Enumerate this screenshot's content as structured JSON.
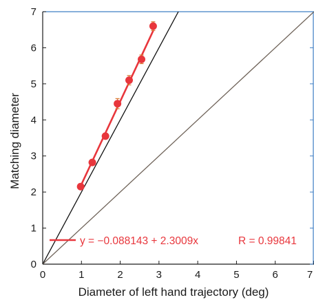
{
  "chart_data": {
    "type": "scatter",
    "xlabel": "Diameter of left hand trajectory (deg)",
    "ylabel": "Matching diameter",
    "xlim": [
      0,
      7
    ],
    "ylim": [
      0,
      7
    ],
    "x_ticks": [
      "0",
      "1",
      "2",
      "3",
      "4",
      "5",
      "6",
      "7"
    ],
    "y_ticks": [
      "0",
      "1",
      "2",
      "3",
      "4",
      "5",
      "6",
      "7"
    ],
    "grid": false,
    "series": [
      {
        "points": [
          {
            "x": 0.98,
            "y": 2.15,
            "err": 0.06
          },
          {
            "x": 1.28,
            "y": 2.82,
            "err": 0.08
          },
          {
            "x": 1.62,
            "y": 3.55,
            "err": 0.07
          },
          {
            "x": 1.93,
            "y": 4.45,
            "err": 0.14
          },
          {
            "x": 2.23,
            "y": 5.1,
            "err": 0.13
          },
          {
            "x": 2.55,
            "y": 5.68,
            "err": 0.12
          },
          {
            "x": 2.85,
            "y": 6.6,
            "err": 0.12
          }
        ],
        "color": "#e8363c"
      }
    ],
    "fit": {
      "intercept": -0.088143,
      "slope": 2.3009,
      "equation": "y = −0.088143 + 2.3009x",
      "r_label": "R = 0.99841",
      "color": "#e8363c"
    },
    "reference_lines": [
      {
        "slope": 2,
        "color": "#111111"
      },
      {
        "slope": 1,
        "color": "#6e6258"
      }
    ],
    "axis_color": "#1a1a1a",
    "frame_color": "#3f7fc4"
  }
}
